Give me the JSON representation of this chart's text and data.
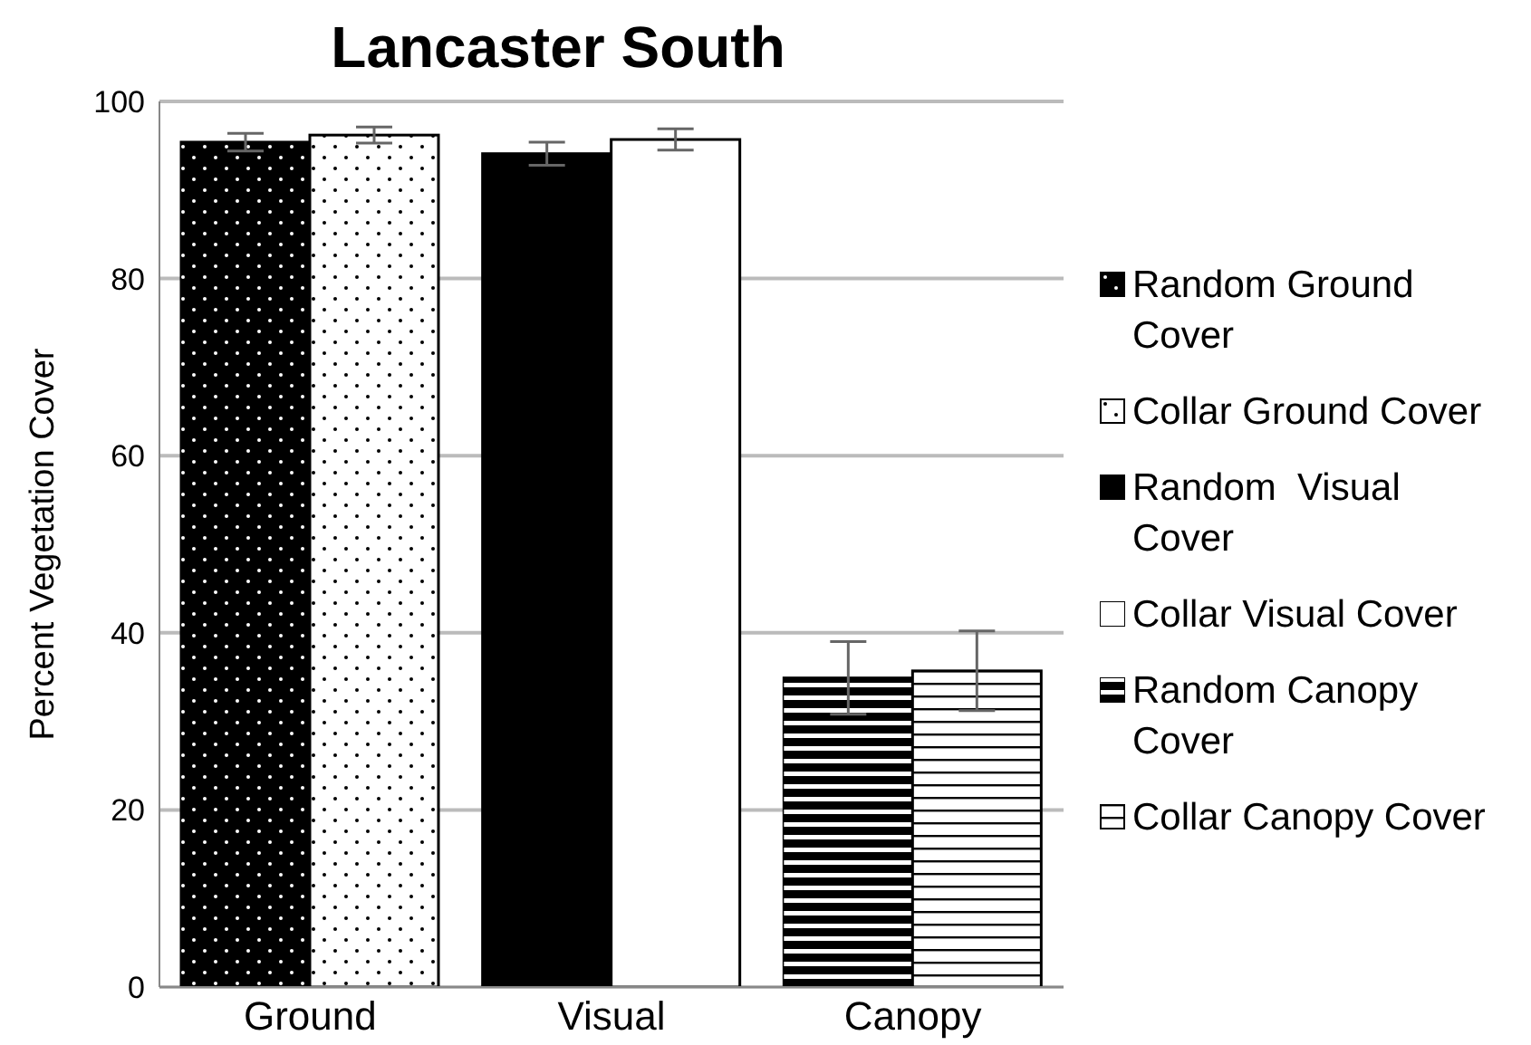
{
  "chart_data": {
    "type": "bar",
    "title": "Lancaster South",
    "ylabel": "Percent Vegetation Cover",
    "categories": [
      "Ground",
      "Visual",
      "Canopy"
    ],
    "series": [
      {
        "name": "Random Ground Cover",
        "color": "#000000",
        "values": [
          95.4,
          null,
          null
        ],
        "errors": [
          1,
          null,
          null
        ]
      },
      {
        "name": "Collar Ground Cover",
        "color": "#ffffff",
        "values": [
          96.2,
          null,
          null
        ],
        "errors": [
          0.9,
          null,
          null
        ]
      },
      {
        "name": "Random  Visual Cover",
        "color": "#000000",
        "values": [
          null,
          94.1,
          null
        ],
        "errors": [
          null,
          1.3,
          null
        ]
      },
      {
        "name": "Collar Visual Cover",
        "color": "#ffffff",
        "values": [
          null,
          95.7,
          null
        ],
        "errors": [
          null,
          1.2,
          null
        ]
      },
      {
        "name": "Random Canopy Cover",
        "color": "#000000",
        "values": [
          null,
          null,
          34.9
        ],
        "errors": [
          null,
          null,
          4.1
        ]
      },
      {
        "name": "Collar Canopy Cover",
        "color": "#ffffff",
        "values": [
          null,
          null,
          35.7
        ],
        "errors": [
          null,
          null,
          4.5
        ]
      }
    ],
    "ylim": [
      0,
      100
    ],
    "yticks": [
      0,
      20,
      40,
      60,
      80,
      100
    ],
    "grid": "y",
    "legend": "right"
  }
}
